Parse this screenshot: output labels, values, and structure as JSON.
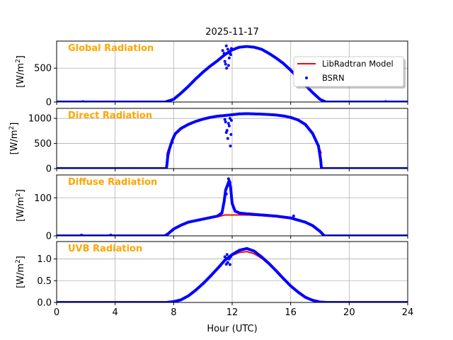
{
  "chart_data": {
    "type": "scatter",
    "title": "2025-11-17",
    "xlabel": "Hour (UTC)",
    "xlim": [
      0,
      24
    ],
    "xticks": [
      0,
      4,
      8,
      12,
      16,
      20,
      24
    ],
    "grid": true,
    "legend": {
      "placement": "top-right of first panel",
      "entries": [
        "LibRadtran Model",
        "BSRN"
      ]
    },
    "colors": {
      "model": "#ff0000",
      "bsrn": "#0000ff",
      "panel_title": "#ffa500"
    },
    "panels": [
      {
        "title": "Global Radiation",
        "ylabel": "[W/m2]",
        "ylim": [
          0,
          900
        ],
        "yticks": [
          0,
          500
        ],
        "model": [
          [
            0,
            0
          ],
          [
            7.4,
            0
          ],
          [
            7.5,
            5
          ],
          [
            8,
            40
          ],
          [
            8.5,
            130
          ],
          [
            9,
            230
          ],
          [
            9.5,
            340
          ],
          [
            10,
            440
          ],
          [
            10.5,
            530
          ],
          [
            11,
            610
          ],
          [
            11.5,
            690
          ],
          [
            12,
            760
          ],
          [
            12.5,
            805
          ],
          [
            13,
            820
          ],
          [
            13.5,
            810
          ],
          [
            14,
            780
          ],
          [
            14.5,
            720
          ],
          [
            15,
            650
          ],
          [
            15.5,
            570
          ],
          [
            16,
            470
          ],
          [
            16.5,
            360
          ],
          [
            17,
            250
          ],
          [
            17.5,
            140
          ],
          [
            18,
            40
          ],
          [
            18.4,
            0
          ],
          [
            24,
            0
          ]
        ],
        "bsrn": [
          [
            0,
            0
          ],
          [
            7.4,
            0
          ],
          [
            7.5,
            5
          ],
          [
            8,
            40
          ],
          [
            8.5,
            130
          ],
          [
            9,
            230
          ],
          [
            9.5,
            340
          ],
          [
            10,
            440
          ],
          [
            10.5,
            530
          ],
          [
            11,
            610
          ],
          [
            11.5,
            700
          ],
          [
            12,
            770
          ],
          [
            12.5,
            810
          ],
          [
            13,
            820
          ],
          [
            13.5,
            810
          ],
          [
            14,
            780
          ],
          [
            14.5,
            720
          ],
          [
            15,
            650
          ],
          [
            15.5,
            570
          ],
          [
            16,
            470
          ],
          [
            16.5,
            360
          ],
          [
            17,
            250
          ],
          [
            17.5,
            140
          ],
          [
            18,
            40
          ],
          [
            18.4,
            0
          ],
          [
            24,
            0
          ]
        ],
        "bsrn_scatter": [
          [
            11.35,
            760
          ],
          [
            11.45,
            720
          ],
          [
            11.5,
            600
          ],
          [
            11.55,
            560
          ],
          [
            11.6,
            830
          ],
          [
            11.62,
            500
          ],
          [
            11.7,
            780
          ],
          [
            11.75,
            540
          ],
          [
            11.8,
            650
          ],
          [
            11.85,
            720
          ],
          [
            11.9,
            700
          ],
          [
            11.95,
            790
          ],
          [
            1.8,
            5
          ],
          [
            22.5,
            5
          ]
        ]
      },
      {
        "title": "Direct Radiation",
        "ylabel": "[W/m2]",
        "ylim": [
          0,
          1200
        ],
        "yticks": [
          0,
          500,
          1000
        ],
        "model": [
          [
            0,
            0
          ],
          [
            7.55,
            0
          ],
          [
            7.55,
            300
          ],
          [
            7.7,
            430
          ],
          [
            8,
            650
          ],
          [
            8.5,
            800
          ],
          [
            9,
            880
          ],
          [
            9.5,
            940
          ],
          [
            10,
            985
          ],
          [
            10.5,
            1020
          ],
          [
            11,
            1045
          ],
          [
            11.5,
            1065
          ],
          [
            12,
            1080
          ],
          [
            12.5,
            1090
          ],
          [
            13,
            1095
          ],
          [
            13.5,
            1090
          ],
          [
            14,
            1085
          ],
          [
            14.5,
            1078
          ],
          [
            15,
            1068
          ],
          [
            15.5,
            1050
          ],
          [
            16,
            1020
          ],
          [
            16.5,
            970
          ],
          [
            17,
            880
          ],
          [
            17.5,
            700
          ],
          [
            17.9,
            450
          ],
          [
            18.1,
            300
          ]
        ],
        "bsrn": [
          [
            0,
            0
          ],
          [
            7.5,
            0
          ],
          [
            7.55,
            100
          ],
          [
            7.6,
            250
          ],
          [
            7.7,
            380
          ],
          [
            7.9,
            560
          ],
          [
            8.1,
            690
          ],
          [
            8.5,
            800
          ],
          [
            9,
            880
          ],
          [
            9.5,
            940
          ],
          [
            10,
            985
          ],
          [
            10.5,
            1020
          ],
          [
            11,
            1045
          ],
          [
            11.4,
            1055
          ],
          [
            12.2,
            1080
          ],
          [
            12.5,
            1090
          ],
          [
            13,
            1095
          ],
          [
            13.5,
            1090
          ],
          [
            14,
            1085
          ],
          [
            14.5,
            1078
          ],
          [
            15,
            1068
          ],
          [
            15.5,
            1050
          ],
          [
            16,
            1020
          ],
          [
            16.5,
            970
          ],
          [
            17,
            880
          ],
          [
            17.5,
            700
          ],
          [
            17.9,
            450
          ],
          [
            18.05,
            170
          ],
          [
            18.1,
            10
          ],
          [
            18.2,
            0
          ],
          [
            24,
            0
          ]
        ],
        "bsrn_scatter": [
          [
            11.5,
            980
          ],
          [
            11.55,
            930
          ],
          [
            11.6,
            720
          ],
          [
            11.65,
            760
          ],
          [
            11.7,
            600
          ],
          [
            11.75,
            900
          ],
          [
            11.8,
            850
          ],
          [
            11.85,
            1000
          ],
          [
            11.88,
            450
          ],
          [
            11.92,
            680
          ],
          [
            11.95,
            960
          ],
          [
            7.8,
            480
          ],
          [
            7.9,
            520
          ]
        ]
      },
      {
        "title": "Diffuse Radiation",
        "ylabel": "[W/m2]",
        "ylim": [
          0,
          160
        ],
        "yticks": [
          0,
          100
        ],
        "model": [
          [
            0,
            0
          ],
          [
            7.4,
            0
          ],
          [
            7.6,
            5
          ],
          [
            8,
            18
          ],
          [
            8.5,
            28
          ],
          [
            9,
            36
          ],
          [
            10,
            44
          ],
          [
            11,
            50
          ],
          [
            11.5,
            55
          ],
          [
            12,
            55
          ],
          [
            13,
            55
          ],
          [
            14,
            53
          ],
          [
            15,
            50
          ],
          [
            16,
            45
          ],
          [
            17,
            36
          ],
          [
            17.5,
            27
          ],
          [
            18,
            12
          ],
          [
            18.3,
            0
          ],
          [
            24,
            0
          ]
        ],
        "bsrn": [
          [
            0,
            0
          ],
          [
            7.4,
            0
          ],
          [
            7.6,
            5
          ],
          [
            8,
            18
          ],
          [
            8.5,
            28
          ],
          [
            9,
            36
          ],
          [
            10,
            44
          ],
          [
            11,
            52
          ],
          [
            11.3,
            60
          ],
          [
            11.45,
            90
          ],
          [
            11.55,
            120
          ],
          [
            11.7,
            135
          ],
          [
            11.8,
            145
          ],
          [
            11.9,
            125
          ],
          [
            12,
            85
          ],
          [
            12.2,
            65
          ],
          [
            12.5,
            60
          ],
          [
            13,
            58
          ],
          [
            14,
            55
          ],
          [
            15,
            52
          ],
          [
            16,
            47
          ],
          [
            17,
            36
          ],
          [
            17.5,
            27
          ],
          [
            18,
            12
          ],
          [
            18.3,
            0
          ],
          [
            24,
            0
          ]
        ],
        "bsrn_scatter": [
          [
            11.6,
            110
          ],
          [
            11.75,
            150
          ],
          [
            11.85,
            140
          ],
          [
            16.2,
            52
          ],
          [
            1.7,
            2
          ],
          [
            3.7,
            2
          ]
        ]
      },
      {
        "title": "UVB Radiation",
        "ylabel": "[W/m2]",
        "ylim": [
          0,
          1.4
        ],
        "yticks": [
          0.0,
          0.5,
          1.0
        ],
        "model": [
          [
            0,
            0
          ],
          [
            7.5,
            0
          ],
          [
            8,
            0.02
          ],
          [
            8.5,
            0.06
          ],
          [
            9,
            0.15
          ],
          [
            9.5,
            0.28
          ],
          [
            10,
            0.43
          ],
          [
            10.5,
            0.6
          ],
          [
            11,
            0.78
          ],
          [
            11.5,
            0.95
          ],
          [
            12,
            1.08
          ],
          [
            12.5,
            1.15
          ],
          [
            13,
            1.17
          ],
          [
            13.5,
            1.12
          ],
          [
            14,
            1.02
          ],
          [
            14.5,
            0.88
          ],
          [
            15,
            0.72
          ],
          [
            15.5,
            0.55
          ],
          [
            16,
            0.38
          ],
          [
            16.5,
            0.24
          ],
          [
            17,
            0.12
          ],
          [
            17.5,
            0.05
          ],
          [
            18,
            0.01
          ],
          [
            18.5,
            0
          ],
          [
            24,
            0
          ]
        ],
        "bsrn": [
          [
            0,
            0
          ],
          [
            7.5,
            0
          ],
          [
            8,
            0.02
          ],
          [
            8.5,
            0.06
          ],
          [
            9,
            0.15
          ],
          [
            9.5,
            0.28
          ],
          [
            10,
            0.43
          ],
          [
            10.5,
            0.6
          ],
          [
            11,
            0.78
          ],
          [
            11.5,
            0.97
          ],
          [
            12,
            1.1
          ],
          [
            12.5,
            1.2
          ],
          [
            13,
            1.24
          ],
          [
            13.5,
            1.18
          ],
          [
            14,
            1.05
          ],
          [
            14.5,
            0.9
          ],
          [
            15,
            0.73
          ],
          [
            15.5,
            0.55
          ],
          [
            16,
            0.38
          ],
          [
            16.5,
            0.24
          ],
          [
            17,
            0.12
          ],
          [
            17.5,
            0.05
          ],
          [
            18,
            0.01
          ],
          [
            18.5,
            0
          ],
          [
            24,
            0
          ]
        ],
        "bsrn_scatter": [
          [
            11.5,
            1.05
          ],
          [
            11.6,
            0.88
          ],
          [
            11.65,
            1.1
          ],
          [
            11.7,
            0.92
          ],
          [
            11.8,
            1.0
          ],
          [
            11.85,
            0.87
          ],
          [
            11.9,
            1.05
          ]
        ]
      }
    ]
  }
}
